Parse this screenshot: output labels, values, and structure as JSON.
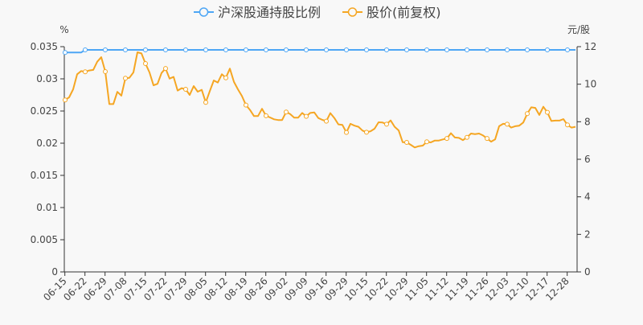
{
  "chart_data": {
    "type": "line",
    "legend": {
      "position": "top-center"
    },
    "left_axis": {
      "unit": "%",
      "ylim": [
        0,
        0.035
      ],
      "ticks": [
        "0",
        "0.005",
        "0.01",
        "0.015",
        "0.02",
        "0.025",
        "0.03",
        "0.035"
      ]
    },
    "right_axis": {
      "unit": "元/股",
      "ylim": [
        0,
        12
      ],
      "ticks": [
        "0",
        "2",
        "4",
        "6",
        "8",
        "10",
        "12"
      ]
    },
    "x_tick_labels": [
      "06-15",
      "06-22",
      "06-29",
      "07-08",
      "07-15",
      "07-22",
      "07-29",
      "08-05",
      "08-12",
      "08-19",
      "08-26",
      "09-02",
      "09-09",
      "09-16",
      "09-29",
      "10-15",
      "10-22",
      "10-29",
      "11-05",
      "11-12",
      "11-19",
      "11-26",
      "12-03",
      "12-10",
      "12-17",
      "12-28"
    ],
    "series": [
      {
        "name": "沪深股通持股比例",
        "axis": "left",
        "color": "#4da6f5",
        "values": [
          0.0341,
          0.0341,
          0.0341,
          0.0341,
          0.0341,
          0.0345,
          0.0345,
          0.0345,
          0.0345,
          0.0345,
          0.0345,
          0.0345,
          0.0345,
          0.0345,
          0.0345,
          0.0345,
          0.0345,
          0.0345,
          0.0345,
          0.0345,
          0.0345,
          0.0345,
          0.0345,
          0.0345,
          0.0345,
          0.0345,
          0.0345,
          0.0345,
          0.0345,
          0.0345,
          0.0345,
          0.0345,
          0.0345,
          0.0345,
          0.0345,
          0.0345,
          0.0345,
          0.0345,
          0.0345,
          0.0345,
          0.0345,
          0.0345,
          0.0345,
          0.0345,
          0.0345,
          0.0345,
          0.0345,
          0.0345,
          0.0345,
          0.0345,
          0.0345,
          0.0345,
          0.0345,
          0.0345,
          0.0345,
          0.0345,
          0.0345,
          0.0345,
          0.0345,
          0.0345,
          0.0345,
          0.0345,
          0.0345,
          0.0345,
          0.0345,
          0.0345,
          0.0345,
          0.0345,
          0.0345,
          0.0345,
          0.0345,
          0.0345,
          0.0345,
          0.0345,
          0.0345,
          0.0345,
          0.0345,
          0.0345,
          0.0345,
          0.0345,
          0.0345,
          0.0345,
          0.0345,
          0.0345,
          0.0345,
          0.0345,
          0.0345,
          0.0345,
          0.0345,
          0.0345,
          0.0345,
          0.0345,
          0.0345,
          0.0345,
          0.0345,
          0.0345,
          0.0345,
          0.0345,
          0.0345,
          0.0345,
          0.0345,
          0.0345,
          0.0345,
          0.0345,
          0.0345,
          0.0345,
          0.0345,
          0.0345,
          0.0345,
          0.0345,
          0.0345,
          0.0345,
          0.0345,
          0.0345,
          0.0345,
          0.0345,
          0.0345,
          0.0345,
          0.0345,
          0.0345,
          0.0345,
          0.0345,
          0.0345,
          0.0345,
          0.0345,
          0.0345,
          0.0345,
          0.0345
        ]
      },
      {
        "name": "股价(前复权)",
        "axis": "right",
        "color": "#f5a623",
        "values": [
          9.16,
          9.3,
          9.73,
          10.53,
          10.7,
          10.66,
          10.73,
          10.76,
          11.2,
          11.44,
          10.67,
          8.94,
          8.94,
          9.59,
          9.39,
          10.32,
          10.34,
          10.63,
          11.7,
          11.64,
          11.1,
          10.63,
          9.94,
          10.02,
          10.6,
          10.84,
          10.3,
          10.39,
          9.66,
          9.79,
          9.73,
          9.43,
          9.9,
          9.6,
          9.7,
          9.03,
          9.63,
          10.2,
          10.09,
          10.53,
          10.34,
          10.83,
          10.13,
          9.73,
          9.37,
          8.89,
          8.63,
          8.3,
          8.3,
          8.69,
          8.32,
          8.23,
          8.13,
          8.09,
          8.09,
          8.52,
          8.41,
          8.22,
          8.22,
          8.47,
          8.29,
          8.47,
          8.5,
          8.2,
          8.1,
          8.03,
          8.46,
          8.2,
          7.86,
          7.83,
          7.43,
          7.89,
          7.79,
          7.73,
          7.53,
          7.44,
          7.49,
          7.63,
          7.97,
          7.96,
          7.87,
          8.07,
          7.73,
          7.54,
          6.91,
          6.9,
          6.77,
          6.63,
          6.7,
          6.73,
          6.93,
          6.9,
          7.0,
          7.0,
          7.06,
          7.11,
          7.39,
          7.16,
          7.14,
          7.02,
          7.17,
          7.37,
          7.34,
          7.37,
          7.27,
          7.11,
          6.94,
          7.06,
          7.76,
          7.89,
          7.87,
          7.69,
          7.76,
          7.79,
          7.96,
          8.43,
          8.77,
          8.74,
          8.36,
          8.8,
          8.5,
          8.04,
          8.06,
          8.06,
          8.14,
          7.83,
          7.69,
          7.73
        ]
      }
    ]
  }
}
